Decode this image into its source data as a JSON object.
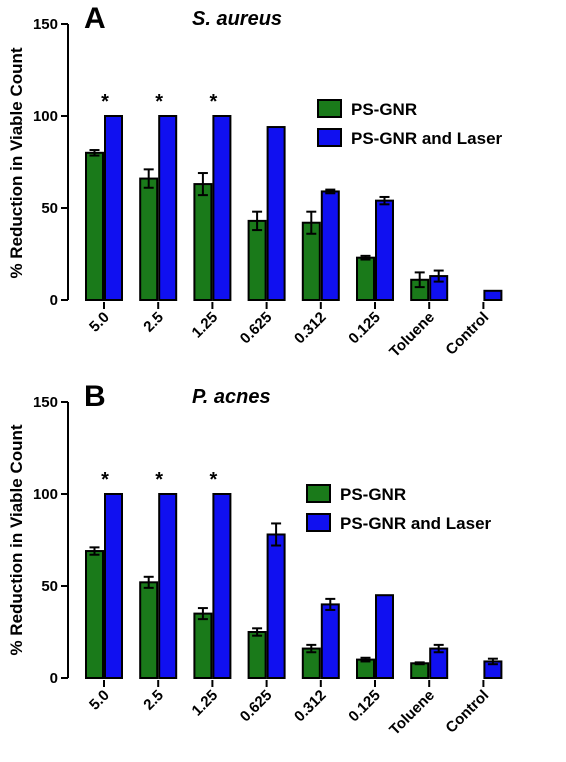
{
  "colors": {
    "PS-GNR": "#1a7a1a",
    "PS-GNR and Laser": "#1010f0",
    "outline": "#000000"
  },
  "chart_data": [
    {
      "type": "bar",
      "panel": "A",
      "title": "S. aureus",
      "ylabel": "% Reduction in Viable Count",
      "xlabel": "",
      "ylim": [
        0,
        150
      ],
      "yticks": [
        0,
        50,
        100,
        150
      ],
      "categories": [
        "5.0",
        "2.5",
        "1.25",
        "0.625",
        "0.312",
        "0.125",
        "Toluene",
        "Control"
      ],
      "series": [
        {
          "name": "PS-GNR",
          "values": [
            80,
            66,
            63,
            43,
            42,
            23,
            11,
            null
          ],
          "errors": [
            1.5,
            5,
            6,
            5,
            6,
            1,
            4,
            null
          ]
        },
        {
          "name": "PS-GNR and Laser",
          "values": [
            100,
            100,
            100,
            94,
            59,
            54,
            13,
            5
          ],
          "errors": [
            0,
            0,
            0,
            0,
            1,
            2,
            3,
            0
          ]
        }
      ],
      "annotations": [
        {
          "text": "*",
          "category": "5.0"
        },
        {
          "text": "*",
          "category": "2.5"
        },
        {
          "text": "*",
          "category": "1.25"
        }
      ],
      "legend": {
        "position": "top-right",
        "entries": [
          "PS-GNR",
          "PS-GNR and Laser"
        ]
      }
    },
    {
      "type": "bar",
      "panel": "B",
      "title": "P. acnes",
      "ylabel": "% Reduction in Viable Count",
      "xlabel": "",
      "ylim": [
        0,
        150
      ],
      "yticks": [
        0,
        50,
        100,
        150
      ],
      "categories": [
        "5.0",
        "2.5",
        "1.25",
        "0.625",
        "0.312",
        "0.125",
        "Toluene",
        "Control"
      ],
      "series": [
        {
          "name": "PS-GNR",
          "values": [
            69,
            52,
            35,
            25,
            16,
            10,
            8,
            null
          ],
          "errors": [
            2,
            3,
            3,
            2,
            2,
            1,
            0.5,
            null
          ]
        },
        {
          "name": "PS-GNR and Laser",
          "values": [
            100,
            100,
            100,
            78,
            40,
            45,
            16,
            9
          ],
          "errors": [
            0,
            0,
            0,
            6,
            3,
            0,
            2,
            1.5
          ]
        }
      ],
      "annotations": [
        {
          "text": "*",
          "category": "5.0"
        },
        {
          "text": "*",
          "category": "2.5"
        },
        {
          "text": "*",
          "category": "1.25"
        }
      ],
      "legend": {
        "position": "top-right",
        "entries": [
          "PS-GNR",
          "PS-GNR and Laser"
        ]
      }
    }
  ]
}
